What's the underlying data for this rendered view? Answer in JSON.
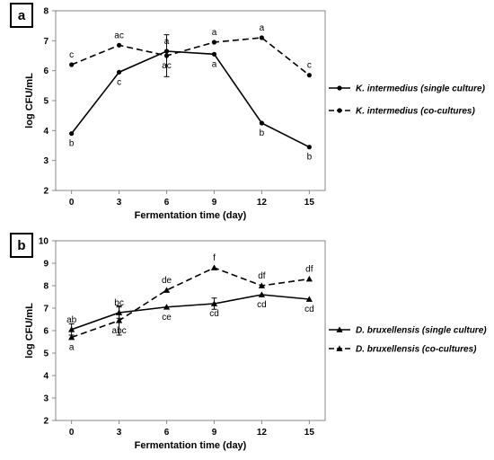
{
  "chart_data": [
    {
      "panel": "a",
      "type": "line",
      "xlabel": "Fermentation time (day)",
      "ylabel": "log CFU/mL",
      "x": [
        0,
        3,
        6,
        9,
        12,
        15
      ],
      "xlim": [
        -1,
        16
      ],
      "ylim": [
        2,
        8
      ],
      "yticks": [
        2,
        3,
        4,
        5,
        6,
        7,
        8
      ],
      "legend_position": "right",
      "marker": "circle",
      "series": [
        {
          "name": "K. intermedius (single culture)",
          "style": "solid",
          "values": [
            3.9,
            5.95,
            6.65,
            6.55,
            4.25,
            3.45
          ],
          "labels": [
            "b",
            "c",
            "a",
            "a",
            "b",
            "b"
          ],
          "errors": [
            0,
            0,
            0,
            0,
            0,
            0
          ]
        },
        {
          "name": "K. intermedius (co-cultures)",
          "style": "dashed",
          "values": [
            6.2,
            6.85,
            6.5,
            6.95,
            7.1,
            5.85
          ],
          "labels": [
            "c",
            "ac",
            "ac",
            "a",
            "a",
            "c"
          ],
          "errors": [
            0,
            0,
            0.7,
            0,
            0,
            0
          ]
        }
      ]
    },
    {
      "panel": "b",
      "type": "line",
      "xlabel": "Fermentation time (day)",
      "ylabel": "log CFU/mL",
      "x": [
        0,
        3,
        6,
        9,
        12,
        15
      ],
      "xlim": [
        -1,
        16
      ],
      "ylim": [
        2,
        10
      ],
      "yticks": [
        2,
        3,
        4,
        5,
        6,
        7,
        8,
        9,
        10
      ],
      "legend_position": "right",
      "marker": "triangle",
      "series": [
        {
          "name": "D. bruxellensis (single culture)",
          "style": "solid",
          "values": [
            6.05,
            6.8,
            7.05,
            7.2,
            7.6,
            7.4
          ],
          "labels": [
            "ab",
            "bc",
            "ce",
            "cd",
            "cd",
            "cd"
          ],
          "errors": [
            0.25,
            0.25,
            0,
            0.25,
            0,
            0
          ]
        },
        {
          "name": "D. bruxellensis (co-cultures)",
          "style": "dashed",
          "values": [
            5.7,
            6.45,
            7.8,
            8.8,
            8.0,
            8.3
          ],
          "labels": [
            "a",
            "abc",
            "de",
            "f",
            "df",
            "df"
          ],
          "errors": [
            0,
            0.65,
            0,
            0,
            0,
            0
          ]
        }
      ]
    }
  ]
}
